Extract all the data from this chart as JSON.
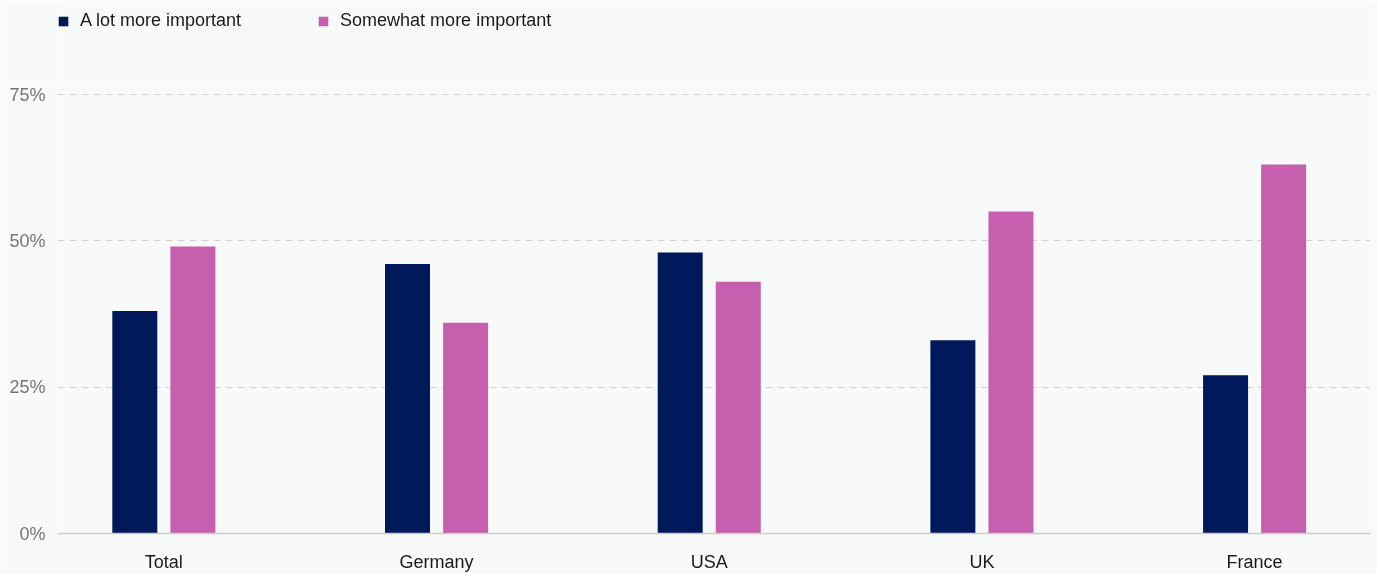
{
  "chart_data": {
    "type": "bar",
    "categories": [
      "Total",
      "Germany",
      "USA",
      "UK",
      "France"
    ],
    "series": [
      {
        "name": "A lot more important",
        "color": "#00195a",
        "values": [
          38,
          46,
          48,
          33,
          27
        ]
      },
      {
        "name": "Somewhat more important",
        "color": "#c660ae",
        "values": [
          49,
          36,
          43,
          55,
          63
        ]
      }
    ],
    "ylim": [
      0,
      75
    ],
    "yticks": [
      {
        "value": 0,
        "label": "0%"
      },
      {
        "value": 25,
        "label": "25%"
      },
      {
        "value": 50,
        "label": "50%"
      },
      {
        "value": 75,
        "label": "75%"
      }
    ],
    "grid": "y",
    "legend": "top left"
  }
}
